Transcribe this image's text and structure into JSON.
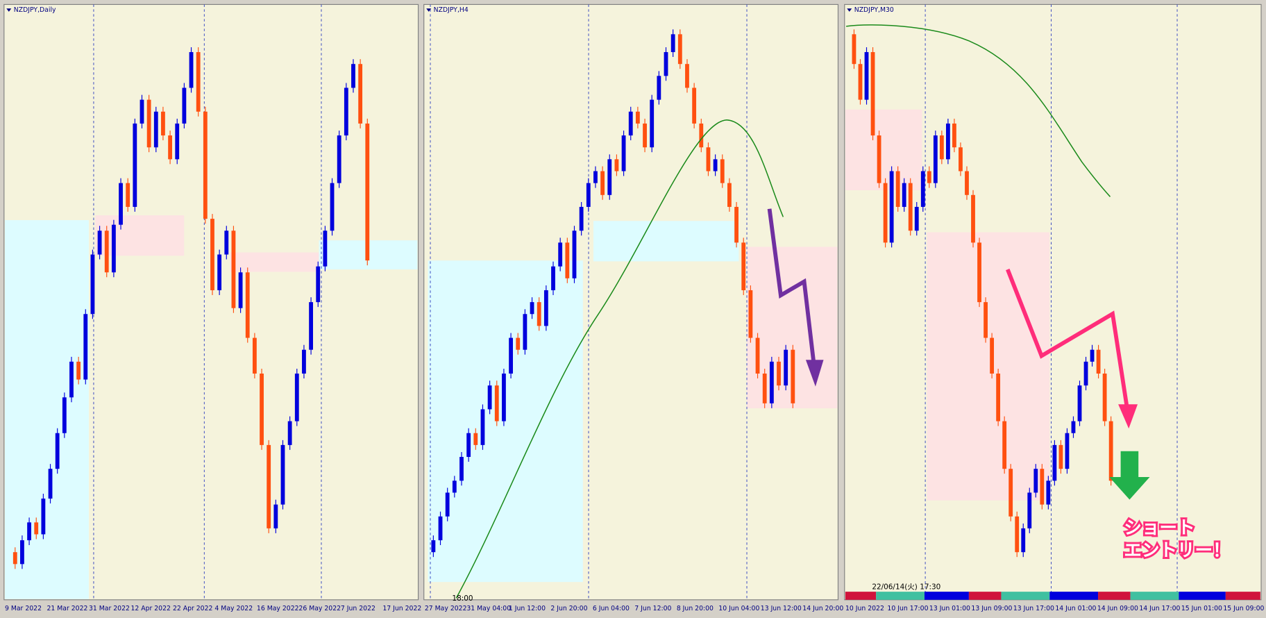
{
  "panels": [
    {
      "title": "NZDJPY,Daily",
      "x_labels": [
        "9 Mar 2022",
        "21 Mar 2022",
        "31 Mar 2022",
        "12 Apr 2022",
        "22 Apr 2022",
        "4 May 2022",
        "16 May 2022",
        "26 May 2022",
        "7 Jun 2022",
        "17 Jun 2022"
      ],
      "closes": [
        8,
        6,
        10,
        13,
        11,
        17,
        22,
        28,
        34,
        40,
        37,
        48,
        58,
        62,
        55,
        63,
        70,
        66,
        80,
        84,
        76,
        82,
        78,
        74,
        80,
        86,
        92,
        82,
        64,
        52,
        58,
        62,
        49,
        55,
        44,
        38,
        26,
        12,
        16,
        26,
        30,
        38,
        42,
        50,
        56,
        62,
        70,
        78,
        86,
        90,
        80,
        57
      ]
    },
    {
      "title": "NZDJPY,H4",
      "time_label": "18:00",
      "x_labels": [
        "27 May 2022",
        "31 May 04:00",
        "1 Jun 12:00",
        "2 Jun 20:00",
        "6 Jun 04:00",
        "7 Jun 12:00",
        "8 Jun 20:00",
        "10 Jun 04:00",
        "13 Jun 12:00",
        "14 Jun 20:00"
      ],
      "closes": [
        8,
        10,
        14,
        18,
        20,
        24,
        28,
        26,
        32,
        36,
        30,
        38,
        44,
        42,
        48,
        50,
        46,
        52,
        56,
        60,
        54,
        62,
        66,
        70,
        72,
        68,
        74,
        72,
        78,
        82,
        80,
        76,
        84,
        88,
        92,
        95,
        90,
        86,
        80,
        76,
        72,
        74,
        70,
        66,
        60,
        52,
        44,
        38,
        33,
        40,
        36,
        42,
        33
      ]
    },
    {
      "title": "NZDJPY,M30",
      "cursor_label": "22/06/14(火) 17:30",
      "x_labels": [
        "10 Jun 2022",
        "10 Jun 17:00",
        "13 Jun 01:00",
        "13 Jun 09:00",
        "13 Jun 17:00",
        "14 Jun 01:00",
        "14 Jun 09:00",
        "14 Jun 17:00",
        "15 Jun 01:00",
        "15 Jun 09:00"
      ],
      "closes": [
        95,
        90,
        84,
        92,
        78,
        70,
        60,
        72,
        66,
        70,
        62,
        66,
        72,
        70,
        78,
        74,
        80,
        76,
        72,
        68,
        60,
        50,
        44,
        38,
        30,
        22,
        14,
        8,
        12,
        18,
        22,
        16,
        20,
        26,
        22,
        28,
        30,
        36,
        40,
        42,
        38,
        30,
        20
      ]
    }
  ],
  "annotation": [
    "ショート",
    "エントリー！"
  ]
}
